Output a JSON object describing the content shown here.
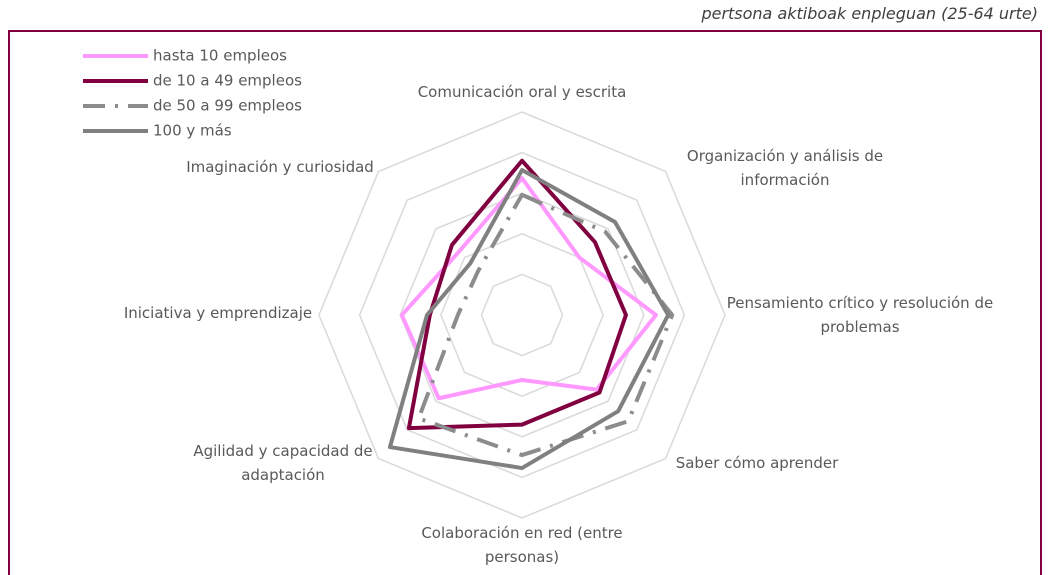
{
  "chart_data": {
    "type": "radar",
    "subtitle": "pertsona aktiboak enpleguan (25-64 urte)",
    "categories": [
      "Comunicación oral y escrita",
      "Organización y análisis de información",
      "Pensamiento crítico y resolución de problemas",
      "Saber cómo aprender",
      "Colaboración en red (entre personas)",
      "Agilidad y capacidad de adaptación",
      "Iniciativa y emprendizaje",
      "Imaginación y curiosidad"
    ],
    "series": [
      {
        "name": "hasta 10 empleos",
        "color": "#ff99ff",
        "style": "solid",
        "values": [
          33.7,
          20,
          33,
          26,
          16,
          29,
          29.6,
          22
        ]
      },
      {
        "name": "de 10 a 49 empleos",
        "color": "#800040",
        "style": "solid",
        "values": [
          38,
          25.4,
          25.6,
          27,
          27,
          39.4,
          22.7,
          24.4
        ]
      },
      {
        "name": "de 50 a 99 empleos",
        "color": "#8c8c8c",
        "style": "dashdot",
        "values": [
          29.6,
          29,
          37,
          37,
          34.5,
          36,
          15.8,
          15.3
        ]
      },
      {
        "name": "100 y más",
        "color": "#808080",
        "style": "solid",
        "values": [
          35.7,
          32.4,
          36,
          33.5,
          37.7,
          46,
          23.4,
          18
        ]
      }
    ],
    "rlim": [
      0,
      50
    ],
    "rticks": [
      10,
      20,
      30,
      40,
      50
    ],
    "grid": true,
    "legend": "upper left"
  }
}
